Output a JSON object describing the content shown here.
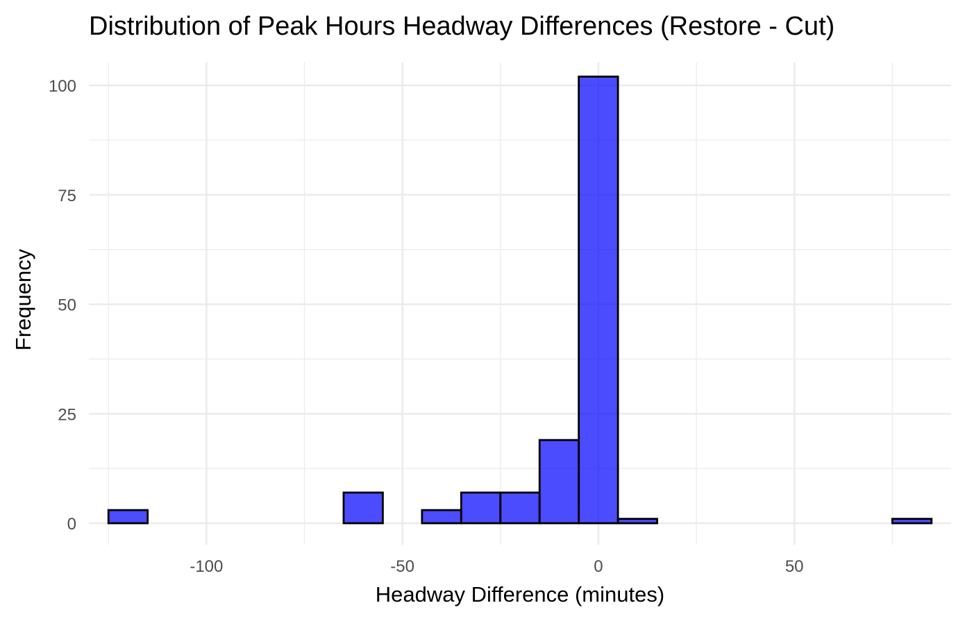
{
  "chart_data": {
    "type": "bar",
    "title": "Distribution of Peak Hours Headway Differences (Restore - Cut)",
    "xlabel": "Headway Difference (minutes)",
    "ylabel": "Frequency",
    "bin_width": 10,
    "bin_starts": [
      -125,
      -115,
      -105,
      -95,
      -85,
      -75,
      -65,
      -55,
      -45,
      -35,
      -25,
      -15,
      -5,
      5,
      15,
      25,
      35,
      45,
      55,
      65,
      75
    ],
    "values": [
      3,
      0,
      0,
      0,
      0,
      0,
      7,
      0,
      3,
      7,
      7,
      19,
      102,
      1,
      0,
      0,
      0,
      0,
      0,
      0,
      1
    ],
    "xlim": [
      -130,
      90
    ],
    "ylim": [
      0,
      105
    ],
    "x_ticks": [
      -100,
      -50,
      0,
      50
    ],
    "x_tick_labels": [
      "-100",
      "-50",
      "0",
      "50"
    ],
    "y_ticks": [
      0,
      25,
      50,
      75,
      100
    ],
    "y_tick_labels": [
      "0",
      "25",
      "50",
      "75",
      "100"
    ],
    "grid": true,
    "colors": {
      "fill": "#0000ff",
      "outline": "#000000",
      "grid": "#ebebeb"
    }
  }
}
